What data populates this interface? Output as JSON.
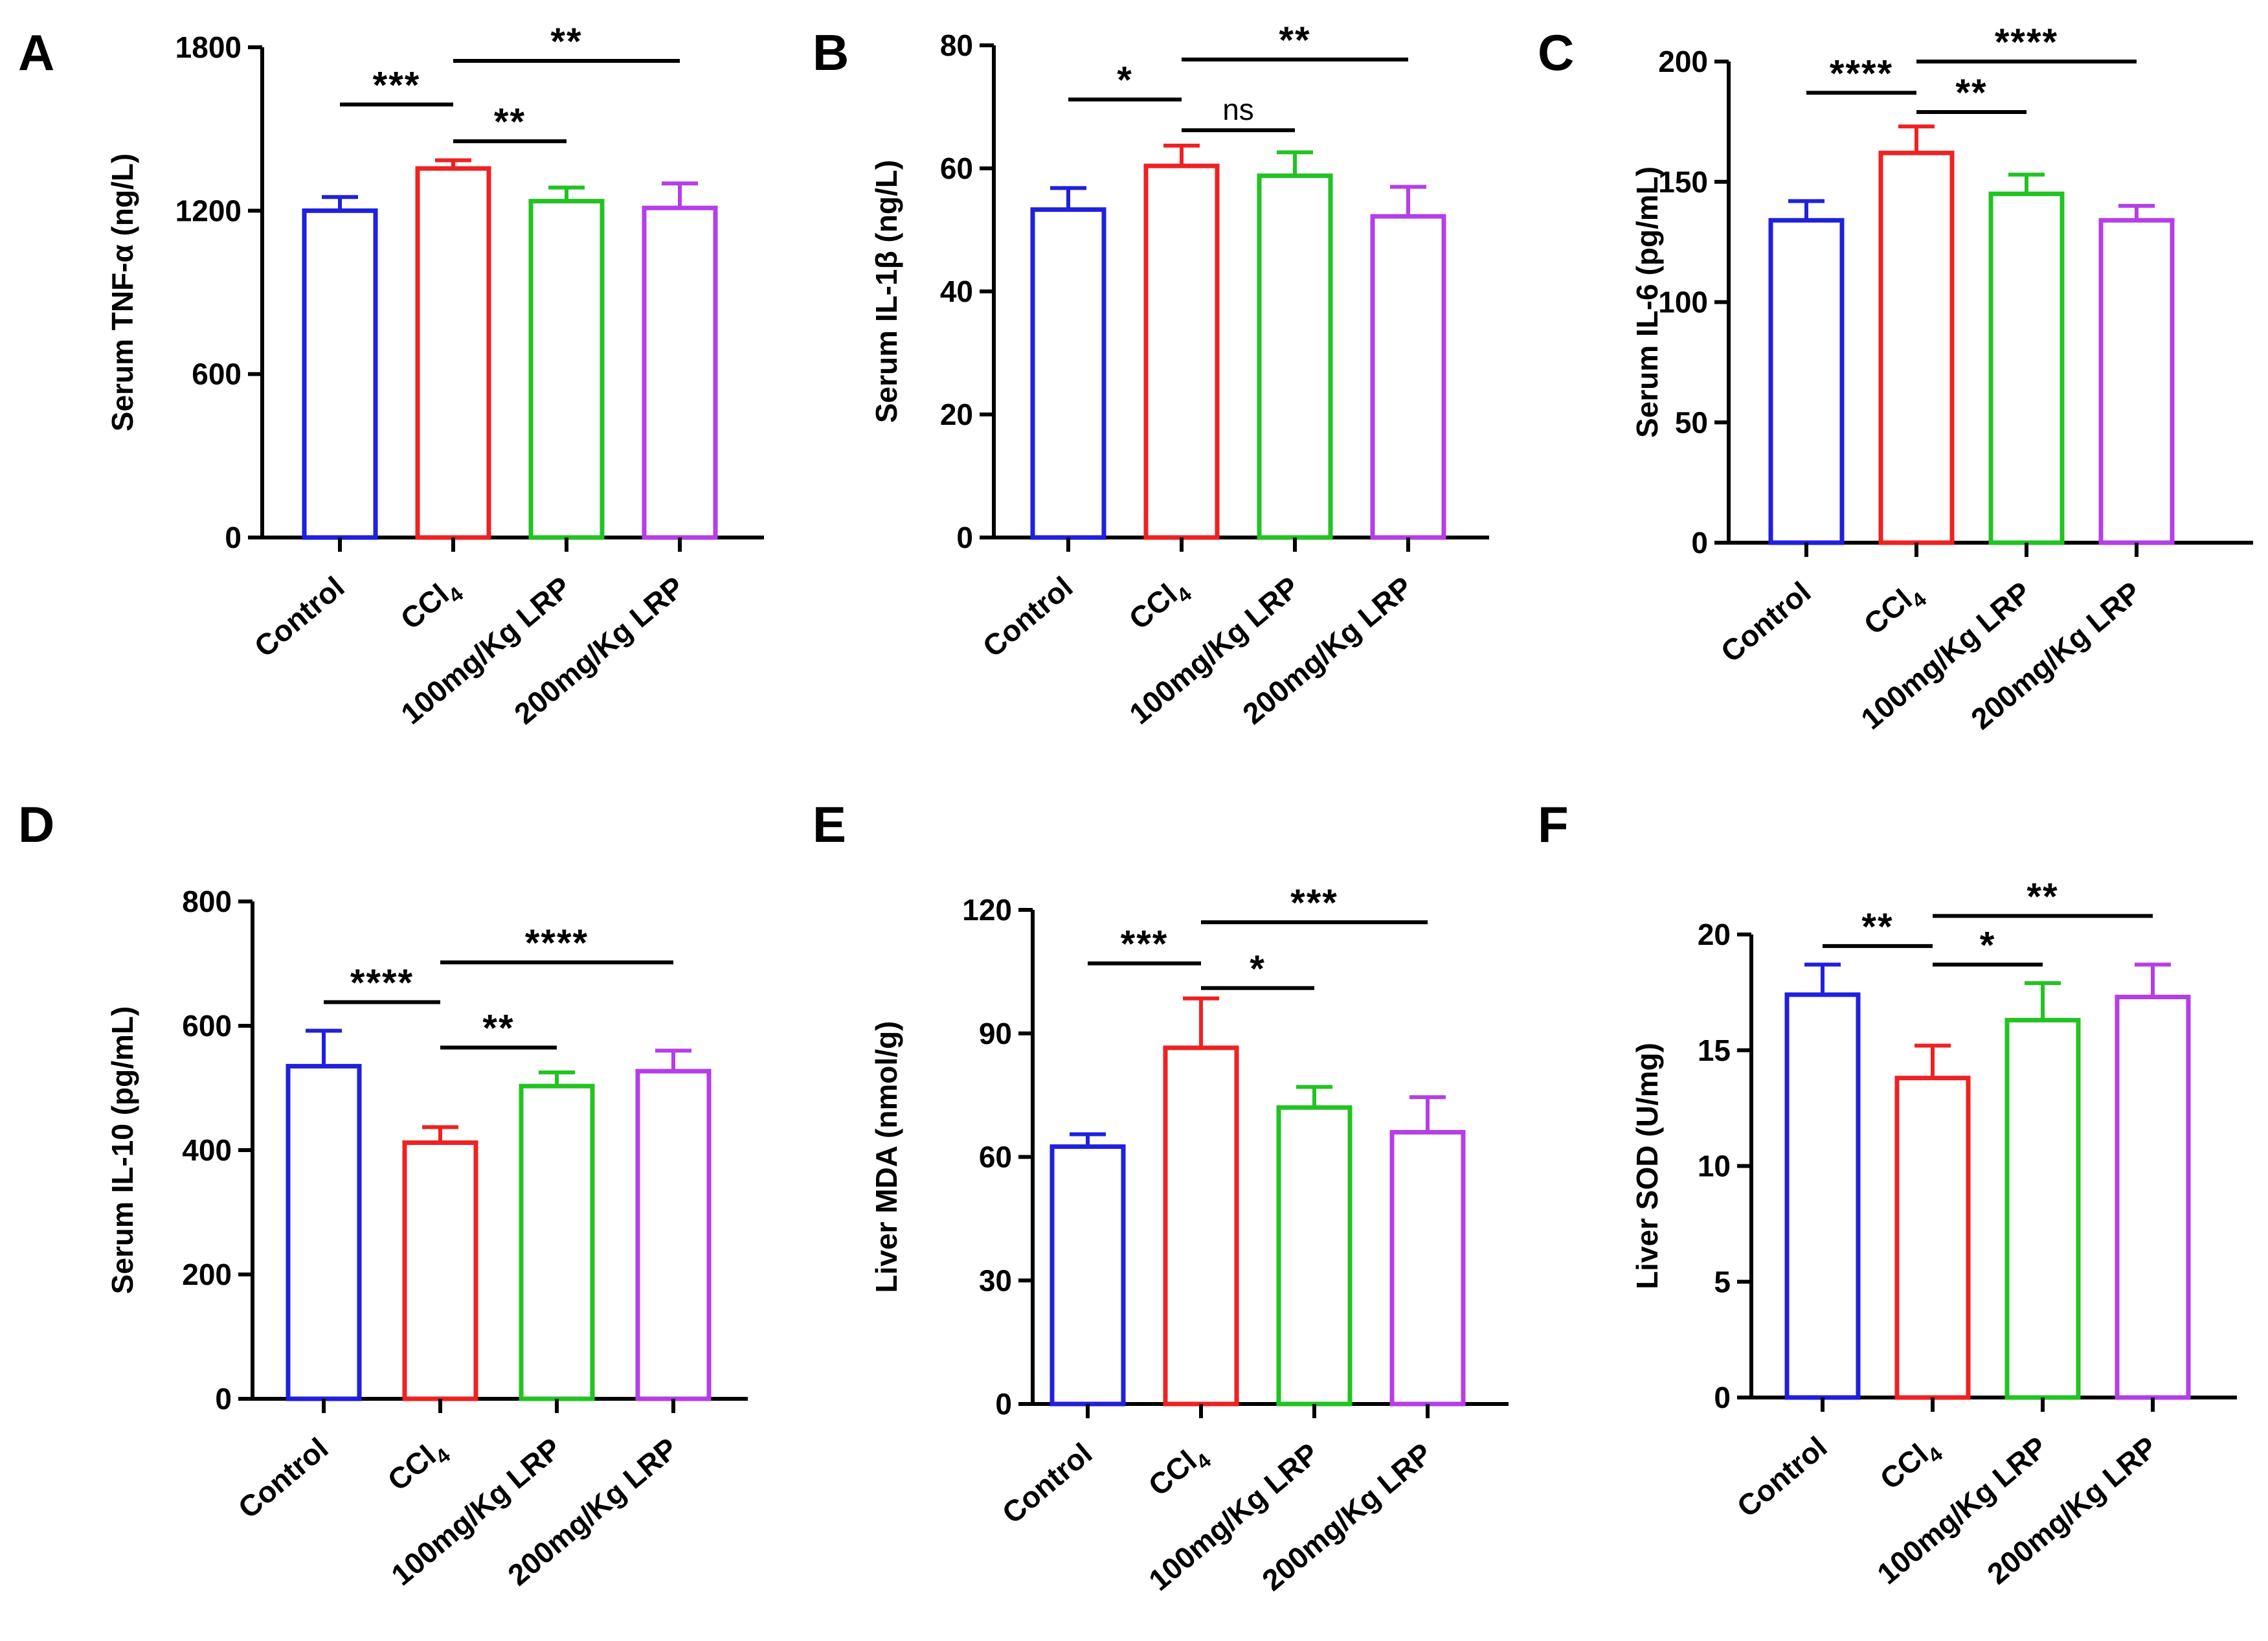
{
  "colors": [
    "#2020dd",
    "#ee2222",
    "#22c322",
    "#b43ee8"
  ],
  "chart_data": [
    {
      "type": "bar",
      "panel": "A",
      "ylabel": "Serum TNF-α (ng/L)",
      "ylim": [
        0,
        1800
      ],
      "yticks": [
        0,
        600,
        1200,
        1800
      ],
      "categories": [
        "Control",
        "CCl4",
        "100mg/Kg LRP",
        "200mg/Kg LRP"
      ],
      "values": [
        1200,
        1355,
        1235,
        1210
      ],
      "errors": [
        50,
        30,
        50,
        90
      ],
      "significance": [
        {
          "from": 0,
          "to": 1,
          "label": "***",
          "y": 1590
        },
        {
          "from": 1,
          "to": 3,
          "label": "**",
          "y": 1750
        },
        {
          "from": 1,
          "to": 2,
          "label": "**",
          "y": 1455
        }
      ]
    },
    {
      "type": "bar",
      "panel": "B",
      "ylabel": "Serum IL-1β (ng/L)",
      "ylim": [
        0,
        80
      ],
      "yticks": [
        0,
        20,
        40,
        60,
        80
      ],
      "categories": [
        "Control",
        "CCl4",
        "100mg/Kg LRP",
        "200mg/Kg LRP"
      ],
      "values": [
        53.3,
        60.4,
        58.8,
        52.2
      ],
      "errors": [
        3.5,
        3.3,
        3.8,
        4.8
      ],
      "significance": [
        {
          "from": 0,
          "to": 1,
          "label": "*",
          "y": 71.2
        },
        {
          "from": 1,
          "to": 3,
          "label": "**",
          "y": 77.7
        },
        {
          "from": 1,
          "to": 2,
          "label": "ns",
          "y": 66.2
        }
      ]
    },
    {
      "type": "bar",
      "panel": "C",
      "ylabel": "Serum IL-6 (pg/mL)",
      "ylim": [
        0,
        200
      ],
      "yticks": [
        0,
        50,
        100,
        150,
        200
      ],
      "categories": [
        "Control",
        "CCl4",
        "100mg/Kg LRP",
        "200mg/Kg LRP"
      ],
      "values": [
        134,
        162,
        145,
        134
      ],
      "errors": [
        8,
        11,
        8,
        6
      ],
      "significance": [
        {
          "from": 0,
          "to": 1,
          "label": "****",
          "y": 187
        },
        {
          "from": 1,
          "to": 3,
          "label": "****",
          "y": 200
        },
        {
          "from": 1,
          "to": 2,
          "label": "**",
          "y": 179
        }
      ]
    },
    {
      "type": "bar",
      "panel": "D",
      "ylabel": "Serum IL-10 (pg/mL)",
      "ylim": [
        0,
        800
      ],
      "yticks": [
        0,
        200,
        400,
        600,
        800
      ],
      "categories": [
        "Control",
        "CCl4",
        "100mg/Kg LRP",
        "200mg/Kg LRP"
      ],
      "values": [
        535,
        412,
        503,
        527
      ],
      "errors": [
        57,
        25,
        22,
        33
      ],
      "significance": [
        {
          "from": 0,
          "to": 1,
          "label": "****",
          "y": 638
        },
        {
          "from": 1,
          "to": 3,
          "label": "****",
          "y": 702
        },
        {
          "from": 1,
          "to": 2,
          "label": "**",
          "y": 565
        }
      ]
    },
    {
      "type": "bar",
      "panel": "E",
      "ylabel": "Liver MDA (nmol/g)",
      "ylim": [
        0,
        120
      ],
      "yticks": [
        0,
        30,
        60,
        90,
        120
      ],
      "categories": [
        "Control",
        "CCl4",
        "100mg/Kg LRP",
        "200mg/Kg LRP"
      ],
      "values": [
        62.5,
        86.5,
        72,
        66
      ],
      "errors": [
        3,
        12,
        5,
        8.5
      ],
      "significance": [
        {
          "from": 0,
          "to": 1,
          "label": "***",
          "y": 107
        },
        {
          "from": 1,
          "to": 3,
          "label": "***",
          "y": 117
        },
        {
          "from": 1,
          "to": 2,
          "label": "*",
          "y": 101
        }
      ]
    },
    {
      "type": "bar",
      "panel": "F",
      "ylabel": "Liver SOD (U/mg)",
      "ylim": [
        0,
        20
      ],
      "yticks": [
        0,
        5,
        10,
        15,
        20
      ],
      "categories": [
        "Control",
        "CCl4",
        "100mg/Kg LRP",
        "200mg/Kg LRP"
      ],
      "values": [
        17.4,
        13.8,
        16.3,
        17.3
      ],
      "errors": [
        1.3,
        1.4,
        1.6,
        1.4
      ],
      "significance": [
        {
          "from": 0,
          "to": 1,
          "label": "**",
          "y": 19.5
        },
        {
          "from": 1,
          "to": 3,
          "label": "**",
          "y": 20.8
        },
        {
          "from": 1,
          "to": 2,
          "label": "*",
          "y": 18.7
        }
      ]
    }
  ]
}
